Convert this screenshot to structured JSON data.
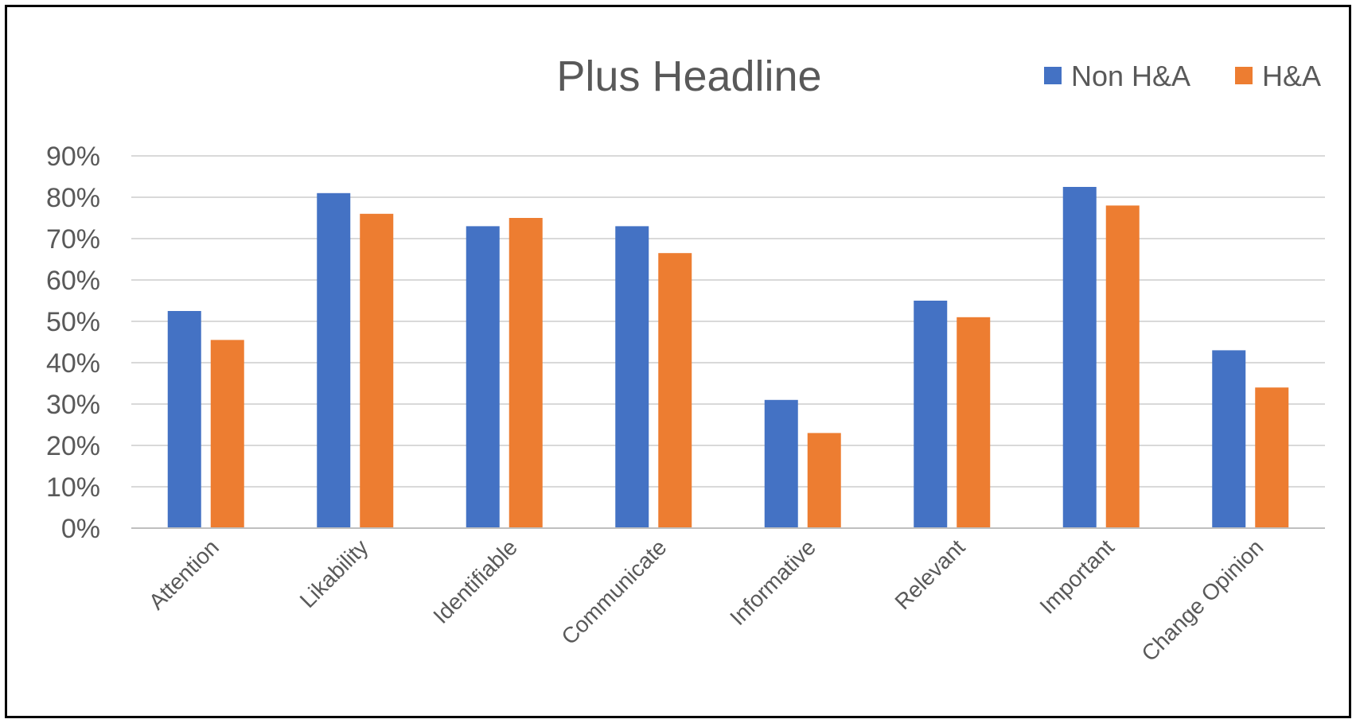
{
  "chart_data": {
    "type": "bar",
    "title": "Plus Headline",
    "xlabel": "",
    "ylabel": "",
    "categories": [
      "Attention",
      "Likability",
      "Identifiable",
      "Communicate",
      "Informative",
      "Relevant",
      "Important",
      "Change Opinion"
    ],
    "series": [
      {
        "name": "Non H&A",
        "color": "#4472C4",
        "values": [
          52.5,
          81,
          73,
          73,
          31,
          55,
          82.5,
          43
        ]
      },
      {
        "name": "H&A",
        "color": "#ED7D31",
        "values": [
          45.5,
          76,
          75,
          66.5,
          23,
          51,
          78,
          34
        ]
      }
    ],
    "ylim": [
      0,
      90
    ],
    "yticks": [
      "0%",
      "10%",
      "20%",
      "30%",
      "40%",
      "50%",
      "60%",
      "70%",
      "80%",
      "90%"
    ],
    "grid": true,
    "legend_position": "top-right"
  }
}
